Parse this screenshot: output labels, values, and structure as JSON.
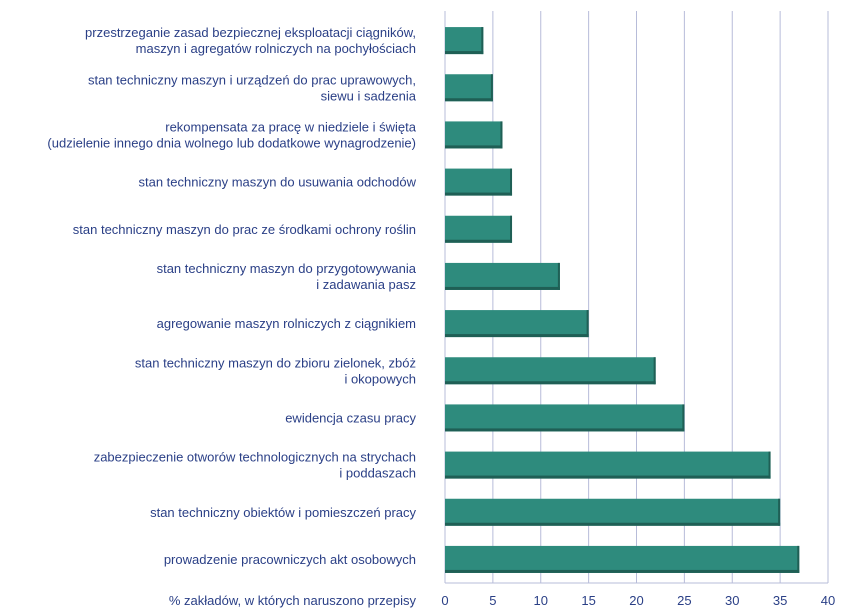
{
  "chart_data": {
    "type": "bar",
    "orientation": "horizontal",
    "categories": [
      [
        "przestrzeganie zasad bezpiecznej eksploatacji ciągników,",
        "maszyn i agregatów rolniczych na pochyłościach"
      ],
      [
        "stan techniczny maszyn i urządzeń do prac uprawowych,",
        "siewu i sadzenia"
      ],
      [
        "rekompensata za pracę w niedziele i święta",
        "(udzielenie innego dnia wolnego lub dodatkowe wynagrodzenie)"
      ],
      [
        "stan techniczny maszyn do usuwania odchodów"
      ],
      [
        "stan techniczny maszyn do prac ze środkami ochrony roślin"
      ],
      [
        "stan techniczny maszyn do przygotowywania",
        "i zadawania pasz"
      ],
      [
        "agregowanie maszyn rolniczych z ciągnikiem"
      ],
      [
        "stan techniczny maszyn do zbioru zielonek, zbóż",
        "i okopowych"
      ],
      [
        "ewidencja czasu pracy"
      ],
      [
        "zabezpieczenie otworów technologicznych na strychach",
        "i poddaszach"
      ],
      [
        "stan techniczny obiektów i pomieszczeń pracy"
      ],
      [
        "prowadzenie pracowniczych akt osobowych"
      ]
    ],
    "values": [
      4,
      5,
      6,
      7,
      7,
      12,
      15,
      22,
      25,
      34,
      35,
      37
    ],
    "xlabel": "% zakładów, w których naruszono przepisy",
    "ylabel": "",
    "title": "",
    "xlim": [
      0,
      40
    ],
    "xticks": [
      "0",
      "5",
      "10",
      "15",
      "20",
      "25",
      "30",
      "35",
      "40"
    ],
    "grid": "vertical",
    "colors": {
      "bar": "#2e8b7d",
      "bar_shadow": "#1f5f55",
      "grid": "#b7bcd9",
      "axis": "#2a3f86",
      "text": "#2a3f86"
    }
  }
}
